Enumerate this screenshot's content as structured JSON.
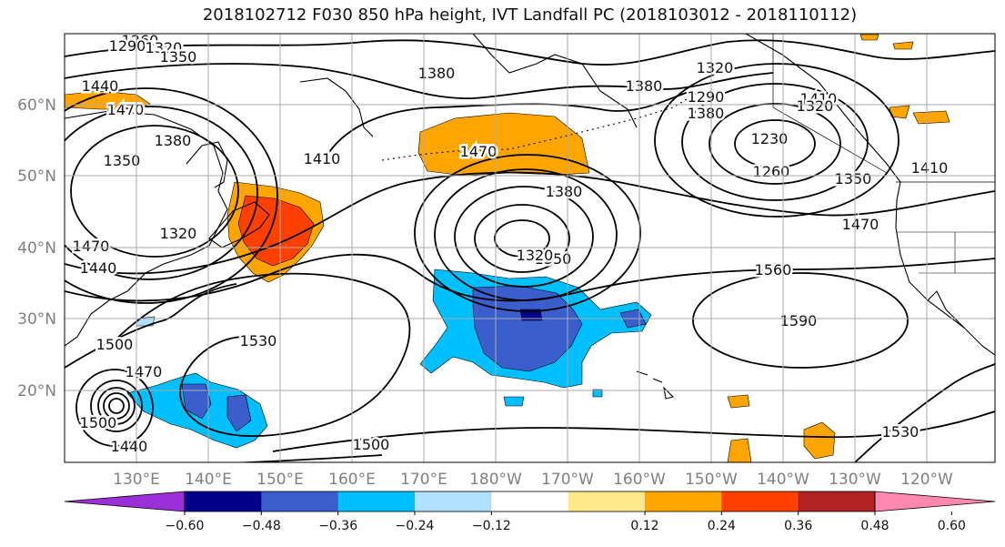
{
  "title": "2018102712 F030 850 hPa height, IVT Landfall PC (2018103012 - 2018110112)",
  "lat_labels": [
    "60°N",
    "50°N",
    "40°N",
    "30°N",
    "20°N"
  ],
  "lon_labels": [
    "130°E",
    "140°E",
    "150°E",
    "160°E",
    "170°E",
    "180°W",
    "170°W",
    "160°W",
    "150°W",
    "140°W",
    "130°W",
    "120°W"
  ],
  "contour_labels": [
    "1260",
    "1290",
    "1320",
    "1350",
    "1380",
    "1380",
    "1320",
    "1410",
    "1440",
    "1470",
    "1470",
    "1380",
    "1410",
    "1440",
    "1470",
    "1350",
    "1380",
    "1320",
    "1350",
    "1320",
    "1380",
    "1410",
    "1230",
    "1260",
    "1290",
    "1320",
    "1350",
    "1470",
    "1560",
    "1590",
    "1530",
    "1500",
    "1470",
    "1440",
    "1500",
    "1530",
    "1500"
  ],
  "colorbar": {
    "tick_labels": [
      "−0.60",
      "−0.48",
      "−0.36",
      "−0.24",
      "−0.12",
      "0.12",
      "0.24",
      "0.36",
      "0.48",
      "0.60"
    ],
    "colors": [
      "#9b30d8",
      "#00008b",
      "#3a5fcd",
      "#00bfff",
      "#b0e2ff",
      "#ffffff",
      "#ffe88a",
      "#ffa500",
      "#ff4000",
      "#b22222",
      "#ff88b0"
    ]
  }
}
